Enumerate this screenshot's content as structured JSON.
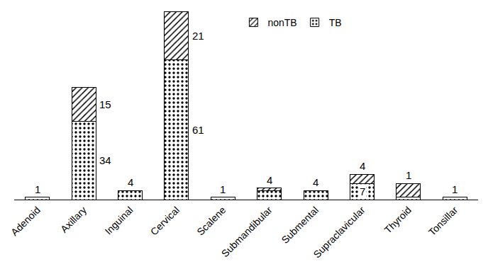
{
  "chart_data": {
    "type": "bar",
    "stacked": true,
    "data_labels": true,
    "tick_labels": "x",
    "grid": false,
    "legend": "top",
    "categories": [
      "Adenoid",
      "Axillary",
      "Inguinal",
      "Cervical",
      "Scalene",
      "Submandibular",
      "Submental",
      "Supraclavicular",
      "Thyroid",
      "Tonsillar"
    ],
    "ylim": [
      0,
      82
    ],
    "series": [
      {
        "name": "TB",
        "color": "#ffffff",
        "marker": "dots",
        "values": [
          1,
          34,
          4,
          61,
          1,
          4,
          4,
          7,
          1,
          1
        ]
      },
      {
        "name": "nonTB",
        "color": "#ffffff",
        "marker": "hatch",
        "values": [
          0,
          15,
          0,
          21,
          0,
          1,
          0,
          4,
          6,
          0
        ],
        "value_labels": [
          null,
          "15",
          null,
          "21",
          null,
          null,
          null,
          "4",
          null,
          null
        ]
      }
    ]
  }
}
